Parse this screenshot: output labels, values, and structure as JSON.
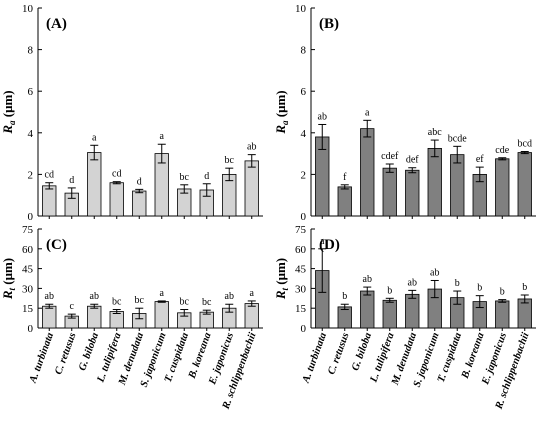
{
  "chart_data": [
    {
      "type": "bar",
      "panel_label": "(A)",
      "ylabel_main": "R",
      "ylabel_sub": "a",
      "ylabel_unit": " (μm)",
      "ylim": [
        0,
        10
      ],
      "yticks": [
        0,
        2,
        4,
        6,
        8,
        10
      ],
      "bar_color": "#d3d3d3",
      "categories": [
        "A. turbinata",
        "C. retusus",
        "G. biloba",
        "L. tulipifera",
        "M. denudata",
        "S. japonicum",
        "T. cuspidata",
        "B. koreana",
        "E. japonicus",
        "R. schlippenbachii"
      ],
      "values": [
        1.45,
        1.1,
        3.05,
        1.6,
        1.2,
        3.0,
        1.3,
        1.25,
        2.0,
        2.65
      ],
      "errors": [
        0.15,
        0.25,
        0.35,
        0.05,
        0.08,
        0.45,
        0.2,
        0.3,
        0.3,
        0.3
      ],
      "letters": [
        "cd",
        "d",
        "a",
        "cd",
        "d",
        "a",
        "bc",
        "d",
        "bc",
        "ab"
      ]
    },
    {
      "type": "bar",
      "panel_label": "(B)",
      "ylabel_main": "R",
      "ylabel_sub": "a",
      "ylabel_unit": " (μm)",
      "ylim": [
        0,
        10
      ],
      "yticks": [
        0,
        2,
        4,
        6,
        8,
        10
      ],
      "bar_color": "#808080",
      "categories": [
        "A. turbinata",
        "C. retusus",
        "G. biloba",
        "L. tulipifera",
        "M. denudata",
        "S. japonicum",
        "T. cuspidata",
        "B. koreana",
        "E. japonicus",
        "R. schlippenbachii"
      ],
      "values": [
        3.8,
        1.4,
        4.2,
        2.3,
        2.2,
        3.25,
        2.95,
        2.0,
        2.75,
        3.05
      ],
      "errors": [
        0.6,
        0.1,
        0.4,
        0.2,
        0.12,
        0.4,
        0.4,
        0.35,
        0.05,
        0.05
      ],
      "letters": [
        "ab",
        "f",
        "a",
        "cdef",
        "def",
        "abc",
        "bcde",
        "ef",
        "cde",
        "bcd"
      ]
    },
    {
      "type": "bar",
      "panel_label": "(C)",
      "ylabel_main": "R",
      "ylabel_sub": "t",
      "ylabel_unit": " (μm)",
      "ylim": [
        0,
        75
      ],
      "yticks": [
        0,
        15,
        30,
        45,
        60,
        75
      ],
      "bar_color": "#d3d3d3",
      "categories": [
        "A. turbinata",
        "C. retusus",
        "G. biloba",
        "L. tulipifera",
        "M. denudata",
        "S. japonicum",
        "T. cuspidata",
        "B. koreana",
        "E. japonicus",
        "R. schlippenbachii"
      ],
      "values": [
        16.5,
        9,
        16.5,
        12.5,
        11,
        20,
        11.5,
        12,
        15,
        18.5
      ],
      "errors": [
        1.5,
        1.5,
        1.5,
        1.5,
        4,
        0.5,
        2.5,
        1.5,
        3,
        2
      ],
      "letters": [
        "ab",
        "c",
        "ab",
        "bc",
        "bc",
        "a",
        "bc",
        "bc",
        "ab",
        "a"
      ]
    },
    {
      "type": "bar",
      "panel_label": "(D)",
      "ylabel_main": "R",
      "ylabel_sub": "t",
      "ylabel_unit": " (μm)",
      "ylim": [
        0,
        75
      ],
      "yticks": [
        0,
        15,
        30,
        45,
        60,
        75
      ],
      "bar_color": "#808080",
      "categories": [
        "A. turbinata",
        "C. retusus",
        "G. biloba",
        "L. tulipifera",
        "M. denudata",
        "S. japonicum",
        "T. cuspidata",
        "B. koreana",
        "E. japonicus",
        "R. schlippenbachii"
      ],
      "values": [
        43.5,
        16,
        28,
        21,
        25.5,
        29.5,
        23,
        20,
        20.5,
        22
      ],
      "errors": [
        16.5,
        2,
        3,
        1.5,
        3,
        6.5,
        5,
        4.5,
        1,
        3
      ],
      "letters": [
        "a",
        "b",
        "ab",
        "b",
        "ab",
        "ab",
        "b",
        "b",
        "b",
        "b"
      ]
    }
  ]
}
